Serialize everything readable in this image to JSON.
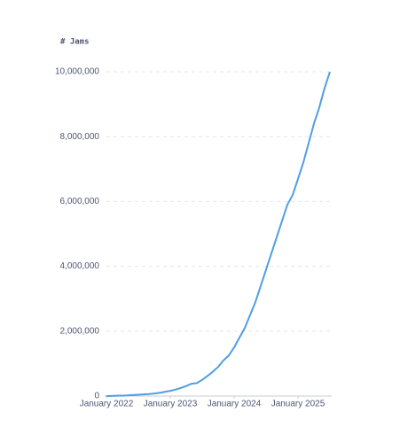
{
  "chart_data": {
    "type": "line",
    "title": "# Jams",
    "x": [
      "2022-01",
      "2022-02",
      "2022-03",
      "2022-04",
      "2022-05",
      "2022-06",
      "2022-07",
      "2022-08",
      "2022-09",
      "2022-10",
      "2022-11",
      "2022-12",
      "2023-01",
      "2023-02",
      "2023-03",
      "2023-04",
      "2023-05",
      "2023-06",
      "2023-07",
      "2023-08",
      "2023-09",
      "2023-10",
      "2023-11",
      "2023-12",
      "2024-01",
      "2024-02",
      "2024-03",
      "2024-04",
      "2024-05",
      "2024-06",
      "2024-07",
      "2024-08",
      "2024-09",
      "2024-10",
      "2024-11",
      "2024-12",
      "2025-01",
      "2025-02",
      "2025-03",
      "2025-04",
      "2025-05",
      "2025-06",
      "2025-07"
    ],
    "series": [
      {
        "name": "Jams",
        "color": "#509ee3",
        "values": [
          0,
          5000,
          10000,
          15000,
          20000,
          30000,
          40000,
          50000,
          60000,
          80000,
          100000,
          130000,
          160000,
          200000,
          250000,
          310000,
          380000,
          400000,
          500000,
          620000,
          750000,
          900000,
          1100000,
          1250000,
          1500000,
          1800000,
          2100000,
          2500000,
          2900000,
          3400000,
          3900000,
          4400000,
          4900000,
          5400000,
          5900000,
          6200000,
          6700000,
          7200000,
          7800000,
          8400000,
          8900000,
          9500000,
          10000000
        ]
      }
    ],
    "xlim": [
      "2022-01",
      "2025-07"
    ],
    "xticks": [
      {
        "value": "2022-01",
        "label": "January 2022"
      },
      {
        "value": "2023-01",
        "label": "January 2023"
      },
      {
        "value": "2024-01",
        "label": "January 2024"
      },
      {
        "value": "2025-01",
        "label": "January 2025"
      }
    ],
    "ylim": [
      0,
      10000000
    ],
    "yticks": [
      0,
      {
        "value": 2000000,
        "label": "2,000,000"
      },
      {
        "value": 4000000,
        "label": "4,000,000"
      },
      {
        "value": 6000000,
        "label": "6,000,000"
      },
      {
        "value": 8000000,
        "label": "8,000,000"
      },
      {
        "value": 10000000,
        "label": "10,000,000"
      }
    ],
    "grid": true
  }
}
